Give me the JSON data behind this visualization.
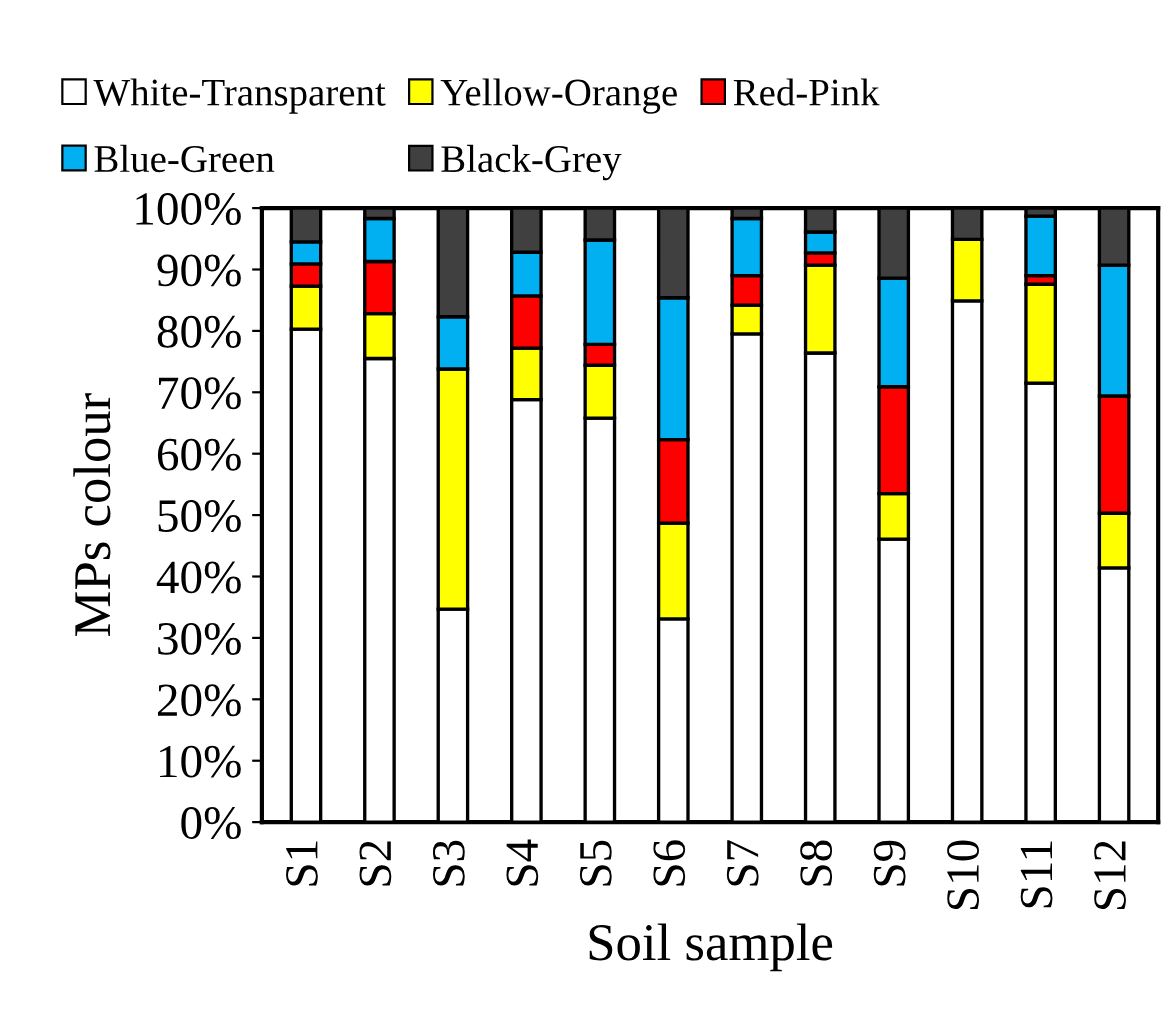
{
  "chart_data": {
    "type": "bar",
    "stacked": true,
    "xlabel": "Soil sample",
    "ylabel": "MPs colour",
    "categories": [
      "S1",
      "S2",
      "S3",
      "S4",
      "S5",
      "S6",
      "S7",
      "S8",
      "S9",
      "S10",
      "S11",
      "S12"
    ],
    "series": [
      {
        "name": "White-Transparent",
        "color": "#ffffff",
        "values": [
          80.3,
          75.5,
          34.7,
          68.8,
          65.8,
          33.1,
          79.5,
          76.4,
          46.1,
          84.9,
          71.5,
          41.4
        ]
      },
      {
        "name": "Yellow-Orange",
        "color": "#ffff00",
        "values": [
          7.0,
          7.3,
          39.1,
          8.4,
          8.6,
          15.6,
          4.7,
          14.3,
          7.4,
          10.0,
          16.1,
          8.9
        ]
      },
      {
        "name": "Red-Pink",
        "color": "#ff0000",
        "values": [
          3.6,
          8.5,
          null,
          8.5,
          3.4,
          13.6,
          4.8,
          2.0,
          17.4,
          null,
          1.4,
          19.1
        ]
      },
      {
        "name": "Blue-Green",
        "color": "#00b0f0",
        "values": [
          3.6,
          7.0,
          8.5,
          7.1,
          17.0,
          23.1,
          9.3,
          3.4,
          17.7,
          null,
          9.7,
          21.3
        ]
      },
      {
        "name": "Black-Grey",
        "color": "#404040",
        "values": [
          5.5,
          1.7,
          17.7,
          7.2,
          5.2,
          14.6,
          1.7,
          3.9,
          11.4,
          5.1,
          1.3,
          9.3
        ]
      }
    ],
    "ylim": [
      0,
      100
    ],
    "yticks": [
      {
        "value": 0,
        "label": "0%"
      },
      {
        "value": 10,
        "label": "10%"
      },
      {
        "value": 20,
        "label": "20%"
      },
      {
        "value": 30,
        "label": "30%"
      },
      {
        "value": 40,
        "label": "40%"
      },
      {
        "value": 50,
        "label": "50%"
      },
      {
        "value": 60,
        "label": "60%"
      },
      {
        "value": 70,
        "label": "70%"
      },
      {
        "value": 80,
        "label": "80%"
      },
      {
        "value": 90,
        "label": "90%"
      },
      {
        "value": 100,
        "label": "100%"
      }
    ],
    "grid": false,
    "legend": "top"
  }
}
